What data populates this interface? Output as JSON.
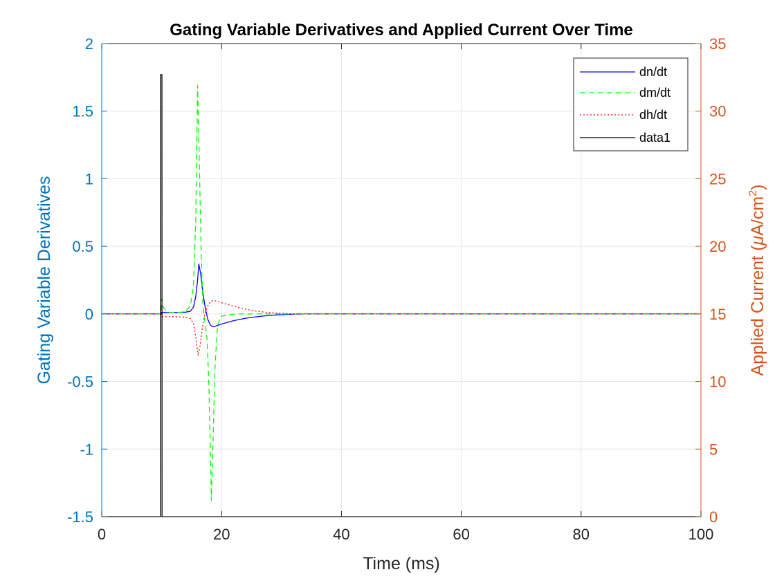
{
  "chart_data": {
    "type": "line",
    "title": "Gating Variable Derivatives and Applied Current Over Time",
    "xlabel": "Time (ms)",
    "ylabel_left": "Gating Variable Derivatives",
    "ylabel_right_prefix": "Applied Current (",
    "ylabel_right_mu": "μ",
    "ylabel_right_mid": "A/cm",
    "ylabel_right_sup": "2",
    "ylabel_right_suffix": ")",
    "xlim": [
      0,
      100
    ],
    "ylim_left": [
      -1.5,
      2
    ],
    "ylim_right": [
      0,
      35
    ],
    "x_ticks": [
      0,
      20,
      40,
      60,
      80,
      100
    ],
    "x_tick_labels": [
      "0",
      "20",
      "40",
      "60",
      "80",
      "100"
    ],
    "y_left_ticks": [
      -1.5,
      -1,
      -0.5,
      0,
      0.5,
      1,
      1.5,
      2
    ],
    "y_left_tick_labels": [
      "-1.5",
      "-1",
      "-0.5",
      "0",
      "0.5",
      "1",
      "1.5",
      "2"
    ],
    "y_right_ticks": [
      0,
      5,
      10,
      15,
      20,
      25,
      30,
      35
    ],
    "y_right_tick_labels": [
      "0",
      "5",
      "10",
      "15",
      "20",
      "25",
      "30",
      "35"
    ],
    "grid": true,
    "legend_position": "top-right",
    "colors": {
      "left_axis": "#0072BD",
      "right_axis": "#D95319",
      "grid": "#E0E6ED"
    },
    "series": [
      {
        "name": "dn/dt",
        "axis": "left",
        "color": "#0000FF",
        "dash": "solid",
        "points": [
          [
            0,
            0
          ],
          [
            9.9,
            0
          ],
          [
            10.0,
            0.012
          ],
          [
            11,
            0.01
          ],
          [
            12,
            0.01
          ],
          [
            13,
            0.011
          ],
          [
            14,
            0.013
          ],
          [
            14.8,
            0.02
          ],
          [
            15.3,
            0.05
          ],
          [
            15.7,
            0.13
          ],
          [
            16.0,
            0.25
          ],
          [
            16.2,
            0.37
          ],
          [
            16.5,
            0.3
          ],
          [
            16.9,
            0.15
          ],
          [
            17.3,
            0.04
          ],
          [
            17.7,
            -0.04
          ],
          [
            18.1,
            -0.08
          ],
          [
            18.5,
            -0.095
          ],
          [
            19,
            -0.09
          ],
          [
            20,
            -0.075
          ],
          [
            22,
            -0.05
          ],
          [
            24,
            -0.032
          ],
          [
            26,
            -0.02
          ],
          [
            28,
            -0.011
          ],
          [
            30,
            -0.006
          ],
          [
            32,
            -0.002
          ],
          [
            34,
            0
          ],
          [
            100,
            0
          ]
        ]
      },
      {
        "name": "dm/dt",
        "axis": "left",
        "color": "#00FF00",
        "dash": "8,5",
        "points": [
          [
            0,
            0
          ],
          [
            9.9,
            0
          ],
          [
            10.0,
            0.11
          ],
          [
            10.3,
            0.05
          ],
          [
            10.8,
            0.02
          ],
          [
            11.5,
            0.01
          ],
          [
            13,
            0.01
          ],
          [
            14,
            0.02
          ],
          [
            14.8,
            0.06
          ],
          [
            15.3,
            0.2
          ],
          [
            15.7,
            0.7
          ],
          [
            16.0,
            1.69
          ],
          [
            16.3,
            1.1
          ],
          [
            16.6,
            0.45
          ],
          [
            16.9,
            0.05
          ],
          [
            17.3,
            -0.08
          ],
          [
            17.6,
            -0.2
          ],
          [
            17.9,
            -0.55
          ],
          [
            18.1,
            -0.95
          ],
          [
            18.3,
            -1.38
          ],
          [
            18.6,
            -0.9
          ],
          [
            18.9,
            -0.4
          ],
          [
            19.3,
            -0.1
          ],
          [
            19.8,
            -0.02
          ],
          [
            21,
            -0.005
          ],
          [
            23,
            0
          ],
          [
            100,
            0
          ]
        ]
      },
      {
        "name": "dh/dt",
        "axis": "left",
        "color": "#FF0000",
        "dash": "2,3",
        "points": [
          [
            0,
            0
          ],
          [
            9.9,
            0
          ],
          [
            10.0,
            -0.02
          ],
          [
            11,
            -0.02
          ],
          [
            12,
            -0.02
          ],
          [
            13,
            -0.022
          ],
          [
            14,
            -0.025
          ],
          [
            14.8,
            -0.035
          ],
          [
            15.3,
            -0.07
          ],
          [
            15.7,
            -0.17
          ],
          [
            16.1,
            -0.31
          ],
          [
            16.4,
            -0.24
          ],
          [
            16.8,
            -0.1
          ],
          [
            17.2,
            0.0
          ],
          [
            17.6,
            0.05
          ],
          [
            18.1,
            0.09
          ],
          [
            18.6,
            0.1
          ],
          [
            19.5,
            0.09
          ],
          [
            21,
            0.07
          ],
          [
            23,
            0.045
          ],
          [
            25,
            0.026
          ],
          [
            27,
            0.014
          ],
          [
            29,
            0.006
          ],
          [
            31,
            0.002
          ],
          [
            33,
            0
          ],
          [
            100,
            0
          ]
        ]
      },
      {
        "name": "data1",
        "axis": "right",
        "color": "#000000",
        "dash": "solid",
        "points": [
          [
            0,
            0
          ],
          [
            9.8,
            0
          ],
          [
            9.82,
            32.7
          ],
          [
            10.05,
            32.7
          ],
          [
            10.07,
            0
          ],
          [
            100,
            0
          ]
        ]
      }
    ]
  }
}
